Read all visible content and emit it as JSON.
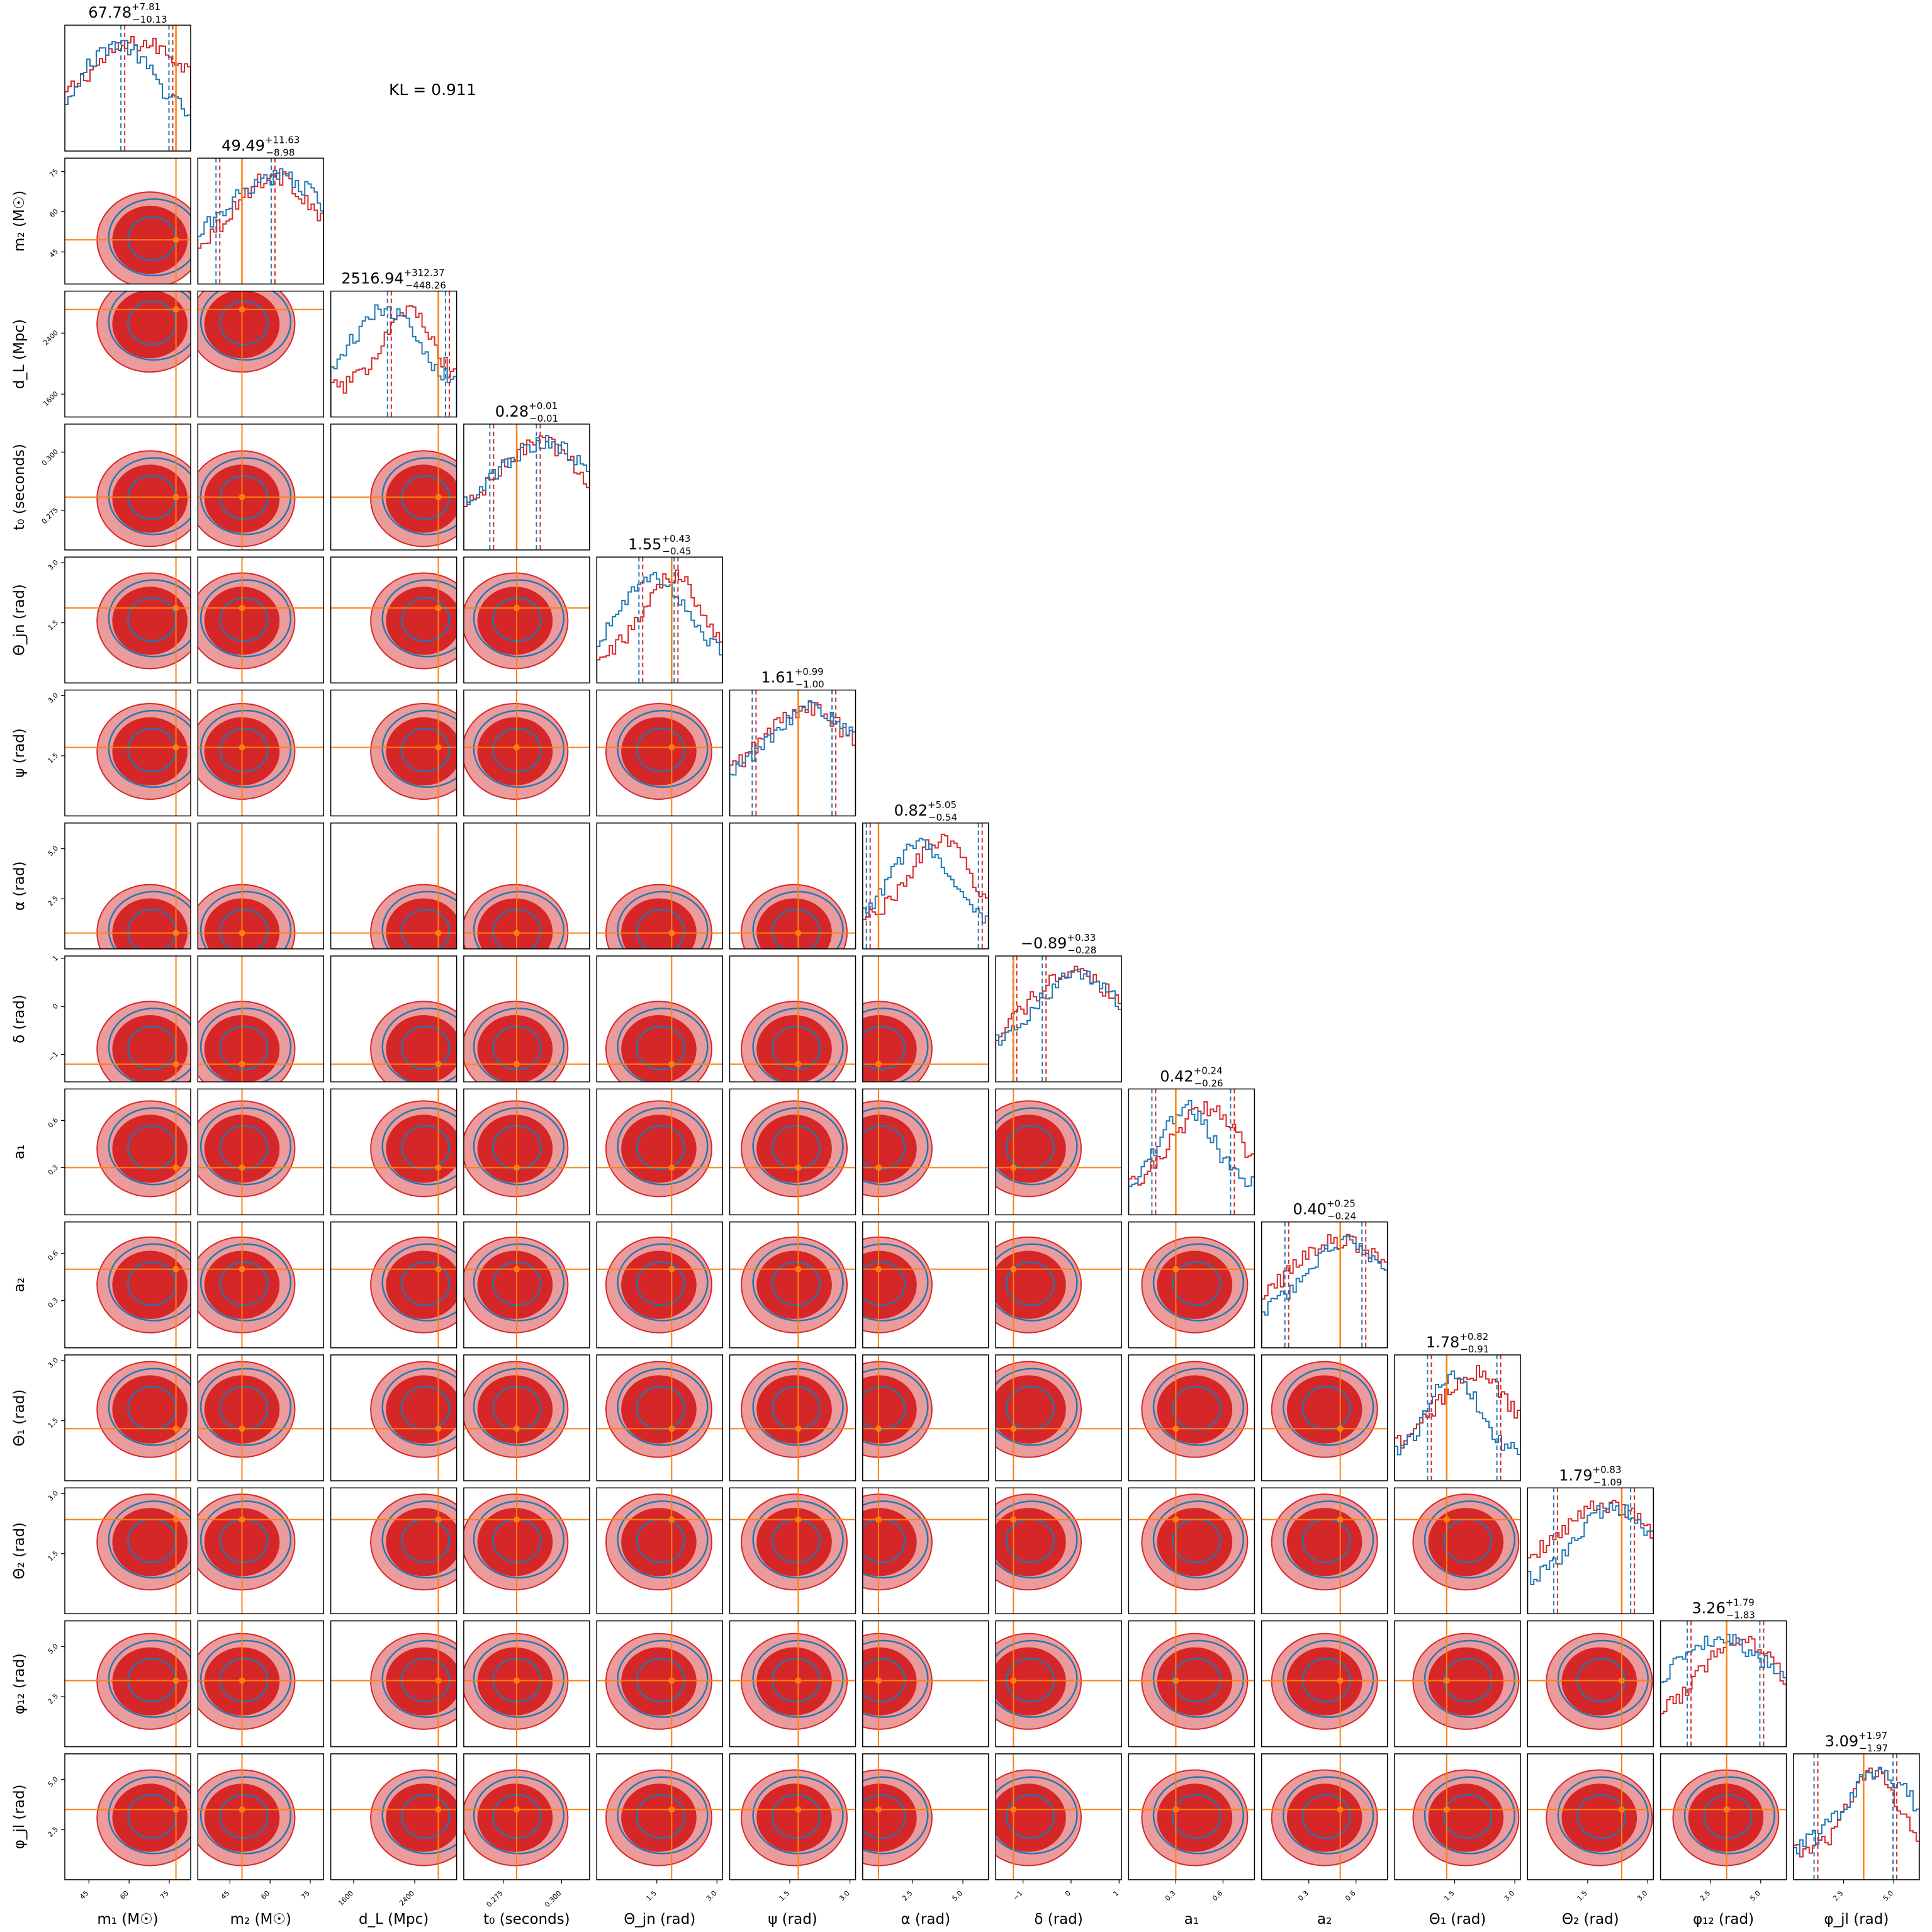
{
  "annotation": {
    "kl_text": "KL = 0.911"
  },
  "colors": {
    "red": "#d62728",
    "red_light": "#ec9b9c",
    "blue": "#1f77b4",
    "orange": "#ff7f0e",
    "frame": "#000000"
  },
  "chart_data": {
    "type": "corner",
    "title": "",
    "parameters": [
      {
        "key": "m1",
        "label": "m₁ (M☉)",
        "range": [
          36,
          83
        ],
        "ticks": [
          "45",
          "60",
          "75"
        ],
        "tick_values": [
          45,
          60,
          75
        ],
        "summary": {
          "median": "67.78",
          "plus": "+7.81",
          "minus": "−10.13"
        },
        "truth": 77.5
      },
      {
        "key": "m2",
        "label": "m₂ (M☉)",
        "range": [
          33,
          80
        ],
        "ticks": [
          "45",
          "60",
          "75"
        ],
        "tick_values": [
          45,
          60,
          75
        ],
        "summary": {
          "median": "49.49",
          "plus": "+11.63",
          "minus": "−8.98"
        },
        "truth": 49.5
      },
      {
        "key": "dL",
        "label": "d_L (Mpc)",
        "range": [
          1300,
          2950
        ],
        "ticks": [
          "1600",
          "2400"
        ],
        "tick_values": [
          1600,
          2400
        ],
        "summary": {
          "median": "2516.94",
          "plus": "+312.37",
          "minus": "−448.26"
        },
        "truth": 2710
      },
      {
        "key": "t0",
        "label": "t₀ (seconds)",
        "range": [
          0.258,
          0.312
        ],
        "ticks": [
          "0.275",
          "0.300"
        ],
        "tick_values": [
          0.275,
          0.3
        ],
        "summary": {
          "median": "0.28",
          "plus": "+0.01",
          "minus": "−0.01"
        },
        "truth": 0.2807
      },
      {
        "key": "thetajn",
        "label": "Θ_jn (rad)",
        "range": [
          0,
          3.14
        ],
        "ticks": [
          "1.5",
          "3.0"
        ],
        "tick_values": [
          1.5,
          3.0
        ],
        "summary": {
          "median": "1.55",
          "plus": "+0.43",
          "minus": "−0.45"
        },
        "truth": 1.87
      },
      {
        "key": "psi",
        "label": "ψ (rad)",
        "range": [
          0,
          3.14
        ],
        "ticks": [
          "1.5",
          "3.0"
        ],
        "tick_values": [
          1.5,
          3.0
        ],
        "summary": {
          "median": "1.61",
          "plus": "+0.99",
          "minus": "−1.00"
        },
        "truth": 1.71
      },
      {
        "key": "alpha",
        "label": "α (rad)",
        "range": [
          0,
          6.28
        ],
        "ticks": [
          "2.5",
          "5.0"
        ],
        "tick_values": [
          2.5,
          5.0
        ],
        "summary": {
          "median": "0.82",
          "plus": "+5.05",
          "minus": "−0.54"
        },
        "truth": 0.79
      },
      {
        "key": "delta",
        "label": "δ (rad)",
        "range": [
          -1.57,
          1.05
        ],
        "ticks": [
          "−1",
          "0",
          "1"
        ],
        "tick_values": [
          -1,
          0,
          1
        ],
        "summary": {
          "median": "−0.89",
          "plus": "+0.33",
          "minus": "−0.28"
        },
        "truth": -1.2
      },
      {
        "key": "a1",
        "label": "a₁",
        "range": [
          0.0,
          0.8
        ],
        "ticks": [
          "0.3",
          "0.6"
        ],
        "tick_values": [
          0.3,
          0.6
        ],
        "summary": {
          "median": "0.42",
          "plus": "+0.24",
          "minus": "−0.26"
        },
        "truth": 0.3
      },
      {
        "key": "a2",
        "label": "a₂",
        "range": [
          0.0,
          0.8
        ],
        "ticks": [
          "0.3",
          "0.6"
        ],
        "tick_values": [
          0.3,
          0.6
        ],
        "summary": {
          "median": "0.40",
          "plus": "+0.25",
          "minus": "−0.24"
        },
        "truth": 0.5
      },
      {
        "key": "theta1",
        "label": "Θ₁ (rad)",
        "range": [
          0,
          3.14
        ],
        "ticks": [
          "1.5",
          "3.0"
        ],
        "tick_values": [
          1.5,
          3.0
        ],
        "summary": {
          "median": "1.78",
          "plus": "+0.82",
          "minus": "−0.91"
        },
        "truth": 1.3
      },
      {
        "key": "theta2",
        "label": "Θ₂ (rad)",
        "range": [
          0,
          3.14
        ],
        "ticks": [
          "1.5",
          "3.0"
        ],
        "tick_values": [
          1.5,
          3.0
        ],
        "summary": {
          "median": "1.79",
          "plus": "+0.83",
          "minus": "−1.09"
        },
        "truth": 2.35
      },
      {
        "key": "phi12",
        "label": "φ₁₂ (rad)",
        "range": [
          0,
          6.28
        ],
        "ticks": [
          "2.5",
          "5.0"
        ],
        "tick_values": [
          2.5,
          5.0
        ],
        "summary": {
          "median": "3.26",
          "plus": "+1.79",
          "minus": "−1.83"
        },
        "truth": 3.3
      },
      {
        "key": "phijl",
        "label": "φ_jl (rad)",
        "range": [
          0,
          6.28
        ],
        "ticks": [
          "2.5",
          "5.0"
        ],
        "tick_values": [
          2.5,
          5.0
        ],
        "summary": {
          "median": "3.09",
          "plus": "+1.97",
          "minus": "−1.97"
        },
        "truth": 3.5
      }
    ],
    "series": [
      {
        "name": "",
        "color": "#d62728",
        "style": "filled contours + step histogram"
      },
      {
        "name": "",
        "color": "#1f77b4",
        "style": "contour lines + step histogram"
      }
    ],
    "truth_color": "#ff7f0e",
    "grid": false,
    "legend": "none"
  }
}
